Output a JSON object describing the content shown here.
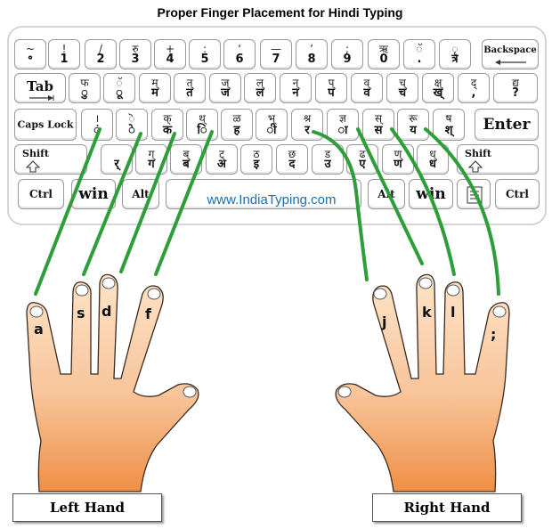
{
  "title": "Proper Finger Placement for Hindi Typing",
  "brand": "www.IndiaTyping.com",
  "labels": {
    "left_hand": "Left Hand",
    "right_hand": "Right Hand"
  },
  "fingers": {
    "a": "a",
    "s": "s",
    "d": "d",
    "f": "f",
    "j": "j",
    "k": "k",
    "l": "l",
    "semicolon": ";"
  },
  "keys": {
    "backquote": {
      "top": "~",
      "bottom": "॰"
    },
    "k1": {
      "top": "!",
      "bottom": "1"
    },
    "k2": {
      "top": "/",
      "bottom": "2"
    },
    "k3": {
      "top": "रु",
      "bottom": "3"
    },
    "k4": {
      "top": "+",
      "bottom": "4"
    },
    "k5": {
      "top": ":",
      "bottom": "5"
    },
    "k6": {
      "top": "‘",
      "bottom": "6"
    },
    "k7": {
      "top": "—",
      "bottom": "7"
    },
    "k8": {
      "top": "’",
      "bottom": "8"
    },
    "k9": {
      "top": ";",
      "bottom": "9"
    },
    "k0": {
      "top": "ऋ",
      "bottom": "0"
    },
    "minus": {
      "top": "ॅ",
      "bottom": "."
    },
    "equal": {
      "top": "ृ",
      "bottom": "त्र"
    },
    "backspace": "Backspace",
    "tab": "Tab",
    "q": {
      "top": "फ",
      "bottom": "ु"
    },
    "w": {
      "top": "ॅ",
      "bottom": "ू"
    },
    "e": {
      "top": "म्",
      "bottom": "म"
    },
    "r": {
      "top": "त्",
      "bottom": "त"
    },
    "t": {
      "top": "ज्",
      "bottom": "ज"
    },
    "y": {
      "top": "ल्",
      "bottom": "ल"
    },
    "u": {
      "top": "न्",
      "bottom": "न"
    },
    "i": {
      "top": "प्",
      "bottom": "प"
    },
    "o": {
      "top": "व्",
      "bottom": "व"
    },
    "p": {
      "top": "च्",
      "bottom": "च"
    },
    "lbracket": {
      "top": "क्ष्",
      "bottom": "ख्"
    },
    "rbracket": {
      "top": "द्",
      "bottom": ","
    },
    "backslash": {
      "top": "द्य",
      "bottom": "?"
    },
    "capslock": "Caps Lock",
    "a": {
      "top": "।",
      "bottom": "ं"
    },
    "s": {
      "top": "ॆ",
      "bottom": "े"
    },
    "d": {
      "top": "क्",
      "bottom": "क"
    },
    "f": {
      "top": "थ्",
      "bottom": "ि"
    },
    "g": {
      "top": "ळ",
      "bottom": "ह"
    },
    "h": {
      "top": "भ्",
      "bottom": "ी"
    },
    "j": {
      "top": "श्र",
      "bottom": "र"
    },
    "k": {
      "top": "ज्ञ",
      "bottom": "ा"
    },
    "l": {
      "top": "स्",
      "bottom": "स"
    },
    "semicolon": {
      "top": "रू",
      "bottom": "य"
    },
    "quote": {
      "top": "ष",
      "bottom": "श्"
    },
    "enter": "Enter",
    "shift": "Shift",
    "z": {
      "top": "",
      "bottom": "र्"
    },
    "x": {
      "top": "ग्",
      "bottom": "ग"
    },
    "c": {
      "top": "ब्",
      "bottom": "ब"
    },
    "v": {
      "top": "ट्",
      "bottom": "अ"
    },
    "b": {
      "top": "ठ",
      "bottom": "इ"
    },
    "n": {
      "top": "छ",
      "bottom": "द"
    },
    "m": {
      "top": "ड",
      "bottom": "उ"
    },
    "comma": {
      "top": "ढ",
      "bottom": "ए"
    },
    "period": {
      "top": "ण्",
      "bottom": "ण"
    },
    "slash": {
      "top": "ध्",
      "bottom": "ध"
    },
    "ctrl": "Ctrl",
    "win": "win",
    "alt": "Alt"
  },
  "colors": {
    "guide_line": "#2e9e3a",
    "hand_light": "#fbd8b8",
    "hand_dark": "#ef8f45",
    "brand": "#1a6fb0"
  }
}
